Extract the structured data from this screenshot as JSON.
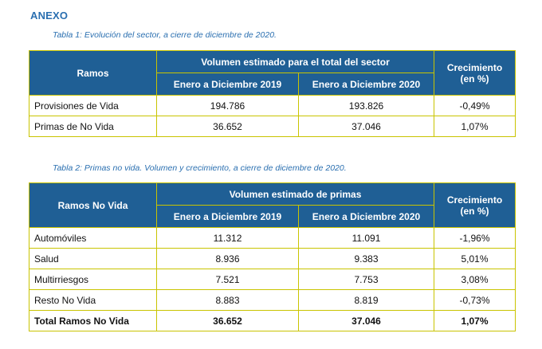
{
  "heading": "ANEXO",
  "table1": {
    "caption": "Tabla 1: Evolución del sector, a cierre de diciembre de 2020.",
    "headers": {
      "first": "Ramos",
      "group": "Volumen estimado para el total del sector",
      "col2019": "Enero a Diciembre 2019",
      "col2020": "Enero a Diciembre 2020",
      "growth": "Crecimiento\n(en %)"
    },
    "rows": [
      {
        "label": "Provisiones de Vida",
        "v2019": "194.786",
        "v2020": "193.826",
        "growth": "-0,49%"
      },
      {
        "label": "Primas de No Vida",
        "v2019": "36.652",
        "v2020": "37.046",
        "growth": "1,07%"
      }
    ]
  },
  "table2": {
    "caption": "Tabla 2: Primas no vida. Volumen y crecimiento, a cierre de diciembre de 2020.",
    "headers": {
      "first": "Ramos No Vida",
      "group": "Volumen estimado de primas",
      "col2019": "Enero a Diciembre 2019",
      "col2020": "Enero a Diciembre 2020",
      "growth": "Crecimiento\n(en %)"
    },
    "rows": [
      {
        "label": "Automóviles",
        "v2019": "11.312",
        "v2020": "11.091",
        "growth": "-1,96%"
      },
      {
        "label": "Salud",
        "v2019": "8.936",
        "v2020": "9.383",
        "growth": "5,01%"
      },
      {
        "label": "Multirriesgos",
        "v2019": "7.521",
        "v2020": "7.753",
        "growth": "3,08%"
      },
      {
        "label": "Resto No Vida",
        "v2019": "8.883",
        "v2020": "8.819",
        "growth": "-0,73%"
      }
    ],
    "total": {
      "label": "Total Ramos No Vida",
      "v2019": "36.652",
      "v2020": "37.046",
      "growth": "1,07%"
    }
  }
}
